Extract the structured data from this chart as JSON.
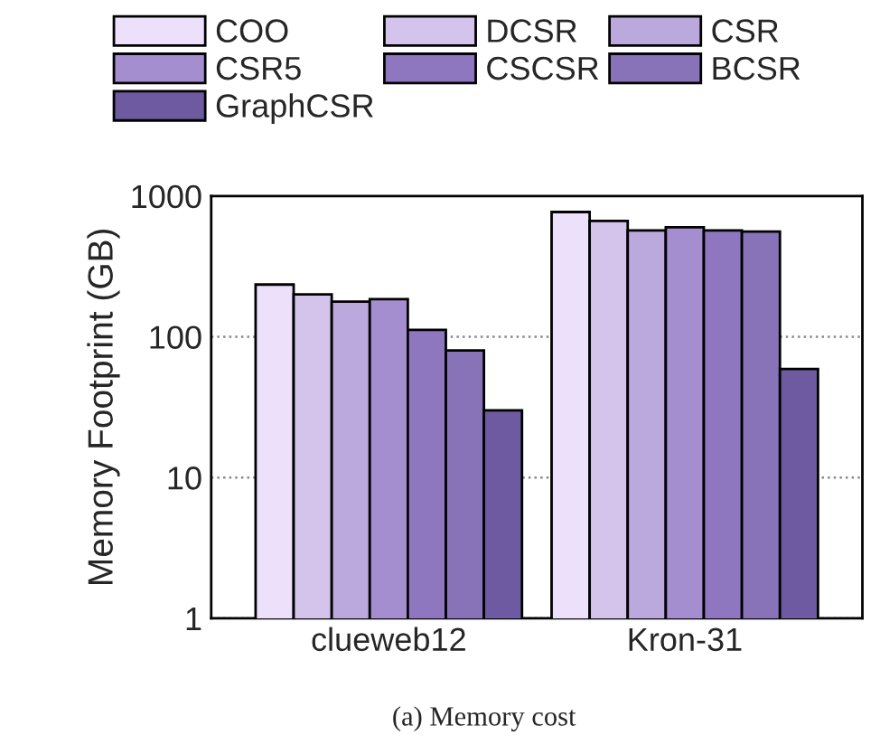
{
  "chart_data": {
    "type": "bar",
    "ylabel": "Memory Footprint (GB)",
    "categories": [
      "clueweb12",
      "Kron-31"
    ],
    "series": [
      {
        "name": "COO",
        "color": "#ece0fb",
        "values": [
          235,
          770
        ]
      },
      {
        "name": "DCSR",
        "color": "#d4c4ec",
        "values": [
          200,
          665
        ]
      },
      {
        "name": "CSR",
        "color": "#bba8dc",
        "values": [
          178,
          570
        ]
      },
      {
        "name": "CSR5",
        "color": "#a48ecf",
        "values": [
          185,
          600
        ]
      },
      {
        "name": "CSCSR",
        "color": "#8f77c0",
        "values": [
          112,
          570
        ]
      },
      {
        "name": "BCSR",
        "color": "#8873b8",
        "values": [
          80,
          560
        ]
      },
      {
        "name": "GraphCSR",
        "color": "#6e5aa0",
        "values": [
          30,
          59
        ]
      }
    ],
    "log": "y",
    "ylim": [
      1,
      1000
    ],
    "yticks": [
      1,
      10,
      100,
      1000
    ],
    "grid": "y",
    "legend": "top",
    "annotations": [
      "(a) Memory cost"
    ]
  }
}
